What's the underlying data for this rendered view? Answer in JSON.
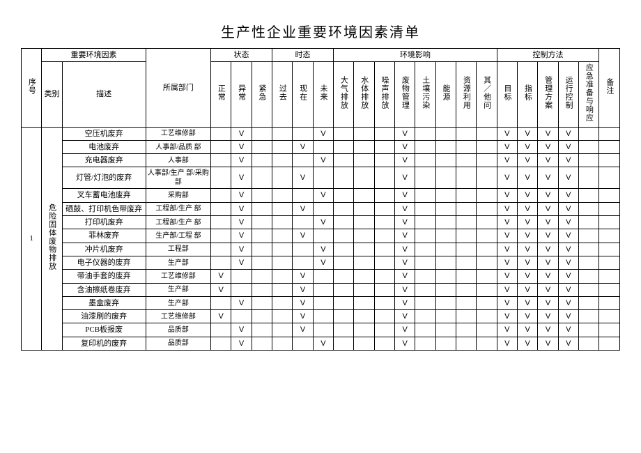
{
  "title": "生产性企业重要环境因素清单",
  "mark": "V",
  "headers": {
    "seq": "序号",
    "envfactor_group": "重要环境因素",
    "category": "类别",
    "description": "描述",
    "department": "所属部门",
    "state_group": "状态",
    "state_normal": "正常",
    "state_abnormal": "异常",
    "state_emergency": "紧急",
    "tense_group": "时态",
    "tense_past": "过去",
    "tense_present": "现在",
    "tense_future": "未来",
    "impact_group": "环境影响",
    "impact_air": "大气排放",
    "impact_water": "水体排放",
    "impact_noise": "噪声排放",
    "impact_waste": "废物管理",
    "impact_soil": "土壤污染",
    "impact_energy": "能源",
    "impact_resource": "资源利用",
    "impact_other": "其／他问",
    "control_group": "控制方法",
    "control_target": "目标",
    "control_index": "指标",
    "control_plan": "管理方案",
    "control_run": "运行控制",
    "control_emerg": "应急准备与响应",
    "remark": "备注"
  },
  "group": {
    "seq": "1",
    "category": "危险固体废物排放"
  },
  "rows": [
    {
      "desc": "空压机废弃",
      "dept": "工艺维修部",
      "state": [
        0,
        1,
        0
      ],
      "tense": [
        0,
        0,
        1
      ],
      "impact": [
        0,
        0,
        0,
        1,
        0,
        0,
        0,
        0
      ],
      "control": [
        1,
        1,
        1,
        1,
        0
      ]
    },
    {
      "desc": "电池废弃",
      "dept": "人事部/品质 部",
      "state": [
        0,
        1,
        0
      ],
      "tense": [
        0,
        1,
        0
      ],
      "impact": [
        0,
        0,
        0,
        1,
        0,
        0,
        0,
        0
      ],
      "control": [
        1,
        1,
        1,
        1,
        0
      ]
    },
    {
      "desc": "充电器废弃",
      "dept": "人事部",
      "state": [
        0,
        1,
        0
      ],
      "tense": [
        0,
        0,
        1
      ],
      "impact": [
        0,
        0,
        0,
        1,
        0,
        0,
        0,
        0
      ],
      "control": [
        1,
        1,
        1,
        1,
        0
      ]
    },
    {
      "desc": "灯管/灯泡的废弃",
      "dept": "人事部/生产 部/采购部",
      "state": [
        0,
        1,
        0
      ],
      "tense": [
        0,
        1,
        0
      ],
      "impact": [
        0,
        0,
        0,
        1,
        0,
        0,
        0,
        0
      ],
      "control": [
        1,
        1,
        1,
        1,
        0
      ]
    },
    {
      "desc": "叉车蓄电池废弃",
      "dept": "采购部",
      "state": [
        0,
        1,
        0
      ],
      "tense": [
        0,
        0,
        1
      ],
      "impact": [
        0,
        0,
        0,
        1,
        0,
        0,
        0,
        0
      ],
      "control": [
        1,
        1,
        1,
        1,
        0
      ]
    },
    {
      "desc": "硒鼓、打印机色带废弃",
      "dept": "工程部/生产 部",
      "state": [
        0,
        1,
        0
      ],
      "tense": [
        0,
        1,
        0
      ],
      "impact": [
        0,
        0,
        0,
        1,
        0,
        0,
        0,
        0
      ],
      "control": [
        1,
        1,
        1,
        1,
        0
      ]
    },
    {
      "desc": "打印机废弃",
      "dept": "工程部/生产 部",
      "state": [
        0,
        1,
        0
      ],
      "tense": [
        0,
        0,
        1
      ],
      "impact": [
        0,
        0,
        0,
        1,
        0,
        0,
        0,
        0
      ],
      "control": [
        1,
        1,
        1,
        1,
        0
      ]
    },
    {
      "desc": "菲林废弃",
      "dept": "生产部/工程 部",
      "state": [
        0,
        1,
        0
      ],
      "tense": [
        0,
        1,
        0
      ],
      "impact": [
        0,
        0,
        0,
        1,
        0,
        0,
        0,
        0
      ],
      "control": [
        1,
        1,
        1,
        1,
        0
      ]
    },
    {
      "desc": "冲片机废弃",
      "dept": "工程部",
      "state": [
        0,
        1,
        0
      ],
      "tense": [
        0,
        0,
        1
      ],
      "impact": [
        0,
        0,
        0,
        1,
        0,
        0,
        0,
        0
      ],
      "control": [
        1,
        1,
        1,
        1,
        0
      ]
    },
    {
      "desc": "电子仪器的废弃",
      "dept": "生产部",
      "state": [
        0,
        1,
        0
      ],
      "tense": [
        0,
        0,
        1
      ],
      "impact": [
        0,
        0,
        0,
        1,
        0,
        0,
        0,
        0
      ],
      "control": [
        1,
        1,
        1,
        1,
        0
      ]
    },
    {
      "desc": "带油手套的废弃",
      "dept": "工艺维修部",
      "state": [
        1,
        0,
        0
      ],
      "tense": [
        0,
        1,
        0
      ],
      "impact": [
        0,
        0,
        0,
        1,
        0,
        0,
        0,
        0
      ],
      "control": [
        1,
        1,
        1,
        1,
        0
      ]
    },
    {
      "desc": "含油擦纸卷废弃",
      "dept": "生产部",
      "state": [
        1,
        0,
        0
      ],
      "tense": [
        0,
        1,
        0
      ],
      "impact": [
        0,
        0,
        0,
        1,
        0,
        0,
        0,
        0
      ],
      "control": [
        1,
        1,
        1,
        1,
        0
      ]
    },
    {
      "desc": "墨盒废弃",
      "dept": "生产部",
      "state": [
        0,
        1,
        0
      ],
      "tense": [
        0,
        1,
        0
      ],
      "impact": [
        0,
        0,
        0,
        1,
        0,
        0,
        0,
        0
      ],
      "control": [
        1,
        1,
        1,
        1,
        0
      ]
    },
    {
      "desc": "油漆刷的废弃",
      "dept": "工艺维修部",
      "state": [
        1,
        0,
        0
      ],
      "tense": [
        0,
        1,
        0
      ],
      "impact": [
        0,
        0,
        0,
        1,
        0,
        0,
        0,
        0
      ],
      "control": [
        1,
        1,
        1,
        1,
        0
      ]
    },
    {
      "desc": "PCB板报废",
      "dept": "品质部",
      "state": [
        0,
        1,
        0
      ],
      "tense": [
        0,
        1,
        0
      ],
      "impact": [
        0,
        0,
        0,
        1,
        0,
        0,
        0,
        0
      ],
      "control": [
        1,
        1,
        1,
        1,
        0
      ]
    },
    {
      "desc": "复印机的废弃",
      "dept": "品质部",
      "state": [
        0,
        1,
        0
      ],
      "tense": [
        0,
        0,
        1
      ],
      "impact": [
        0,
        0,
        0,
        1,
        0,
        0,
        0,
        0
      ],
      "control": [
        1,
        1,
        1,
        1,
        0
      ]
    }
  ]
}
